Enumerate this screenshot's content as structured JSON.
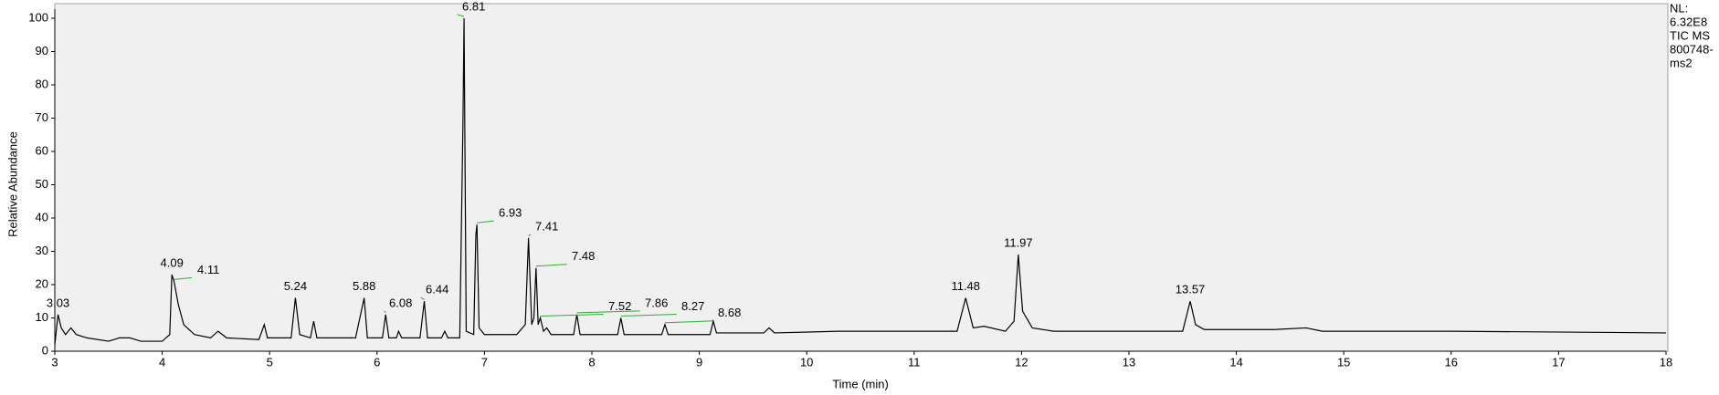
{
  "chart_data": {
    "type": "line",
    "y_label": "Relative Abundance",
    "x_label": "Time (min)",
    "annotations": [
      "NL:",
      "6.32E8",
      "TIC  MS",
      "800748-",
      "ms2"
    ],
    "xlim": [
      3,
      18
    ],
    "xticks": [
      3,
      4,
      5,
      6,
      7,
      8,
      9,
      10,
      11,
      12,
      13,
      14,
      15,
      16,
      17,
      18
    ],
    "ylim": [
      0,
      100
    ],
    "yticks": [
      0,
      10,
      20,
      30,
      40,
      50,
      60,
      70,
      80,
      90,
      100
    ],
    "series": [
      {
        "color": "#000000",
        "x": [
          3.0,
          3.03,
          3.06,
          3.1,
          3.15,
          3.2,
          3.3,
          3.5,
          3.6,
          3.7,
          3.75,
          3.8,
          4.0,
          4.07,
          4.09,
          4.11,
          4.15,
          4.2,
          4.3,
          4.45,
          4.52,
          4.6,
          4.9,
          4.95,
          4.98,
          5.2,
          5.24,
          5.28,
          5.38,
          5.41,
          5.44,
          5.8,
          5.88,
          5.91,
          6.05,
          6.08,
          6.11,
          6.18,
          6.2,
          6.23,
          6.4,
          6.44,
          6.47,
          6.6,
          6.63,
          6.66,
          6.77,
          6.8,
          6.81,
          6.83,
          6.9,
          6.92,
          6.93,
          6.95,
          7.0,
          7.3,
          7.38,
          7.41,
          7.44,
          7.46,
          7.48,
          7.5,
          7.52,
          7.55,
          7.58,
          7.62,
          7.83,
          7.86,
          7.89,
          8.24,
          8.27,
          8.3,
          8.65,
          8.68,
          8.71,
          9.1,
          9.13,
          9.16,
          9.6,
          9.65,
          9.7,
          10.3,
          11.4,
          11.48,
          11.55,
          11.65,
          11.85,
          11.93,
          11.97,
          12.01,
          12.1,
          12.3,
          13.5,
          13.57,
          13.62,
          13.7,
          14.35,
          14.65,
          14.8,
          16.0,
          18.0
        ],
        "values": [
          2,
          11,
          7,
          5,
          7,
          5,
          4,
          3,
          4,
          4,
          3.5,
          3,
          3,
          5,
          23,
          21,
          14,
          8,
          5,
          4,
          6,
          4,
          3.5,
          8,
          4,
          4,
          16,
          5,
          4,
          9,
          4,
          4,
          16,
          4,
          4,
          11,
          4,
          4,
          6,
          4,
          4,
          15,
          4,
          4,
          6,
          4,
          4,
          69,
          100,
          6,
          5,
          35,
          38,
          7,
          5,
          5,
          8,
          34,
          8,
          10,
          25,
          8,
          10,
          6,
          7,
          5,
          5,
          11,
          5,
          5,
          10,
          5,
          5,
          8,
          5,
          5,
          9,
          5.5,
          5.5,
          7,
          5.5,
          6,
          6,
          16,
          7,
          7.5,
          6,
          9,
          29,
          12,
          7,
          6,
          6,
          15,
          8,
          6.5,
          6.5,
          7,
          6,
          6,
          5.5
        ]
      }
    ],
    "peaks": [
      {
        "x": 3.03,
        "y": 11
      },
      {
        "x": 4.09,
        "y": 23
      },
      {
        "x": 4.11,
        "y": 21
      },
      {
        "x": 5.24,
        "y": 16
      },
      {
        "x": 5.88,
        "y": 16
      },
      {
        "x": 6.08,
        "y": 11
      },
      {
        "x": 6.44,
        "y": 15
      },
      {
        "x": 6.81,
        "y": 100
      },
      {
        "x": 6.93,
        "y": 38
      },
      {
        "x": 7.41,
        "y": 34
      },
      {
        "x": 7.48,
        "y": 25
      },
      {
        "x": 7.52,
        "y": 10
      },
      {
        "x": 7.86,
        "y": 11
      },
      {
        "x": 8.27,
        "y": 10
      },
      {
        "x": 8.68,
        "y": 8
      },
      {
        "x": 11.48,
        "y": 16
      },
      {
        "x": 11.97,
        "y": 29
      },
      {
        "x": 13.57,
        "y": 15
      }
    ]
  }
}
